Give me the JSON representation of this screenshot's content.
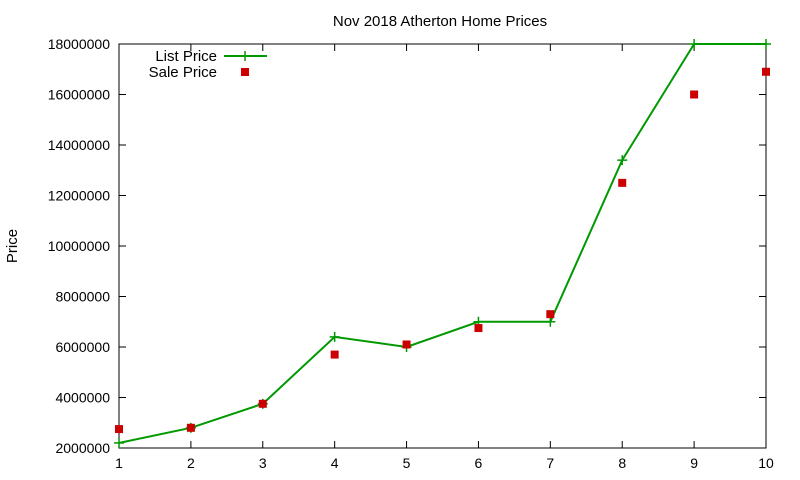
{
  "chart_data": {
    "type": "line",
    "title": "Nov 2018 Atherton Home Prices",
    "xlabel": "",
    "ylabel": "Price",
    "xlim": [
      1,
      10
    ],
    "ylim": [
      2000000,
      18000000
    ],
    "xticks": [
      1,
      2,
      3,
      4,
      5,
      6,
      7,
      8,
      9,
      10
    ],
    "yticks": [
      2000000,
      4000000,
      6000000,
      8000000,
      10000000,
      12000000,
      14000000,
      16000000,
      18000000
    ],
    "grid": false,
    "legend_position": "top-left",
    "x": [
      1,
      2,
      3,
      4,
      5,
      6,
      7,
      8,
      9,
      10
    ],
    "series": [
      {
        "name": "List Price",
        "style": "linespoints",
        "marker": "plus",
        "color": "#009900",
        "values": [
          2200000,
          2800000,
          3750000,
          6400000,
          6000000,
          7000000,
          7000000,
          13400000,
          18000000,
          18000000
        ]
      },
      {
        "name": "Sale Price",
        "style": "points",
        "marker": "square",
        "color": "#cc0000",
        "values": [
          2750000,
          2800000,
          3750000,
          5700000,
          6100000,
          6750000,
          7300000,
          12500000,
          16000000,
          16900000
        ]
      }
    ]
  }
}
